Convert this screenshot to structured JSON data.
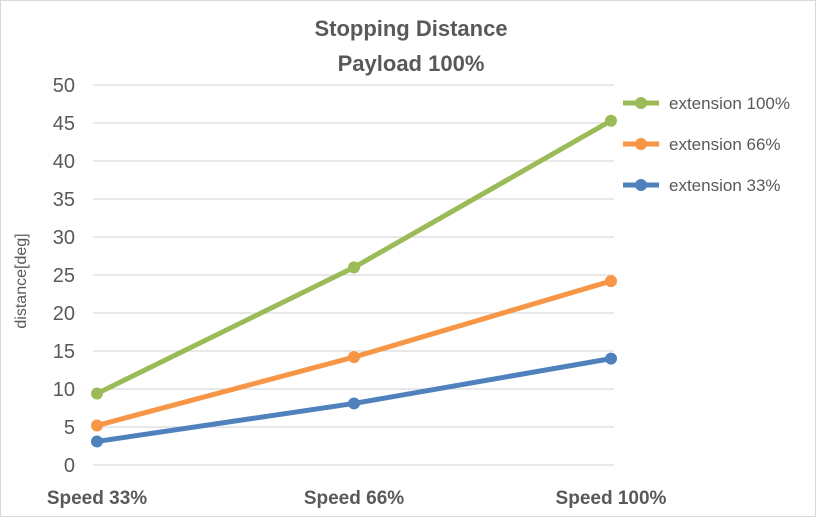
{
  "chart_data": {
    "type": "line",
    "title": [
      "Stopping Distance",
      "Payload 100%"
    ],
    "xlabel": "",
    "ylabel": "distance[deg]",
    "categories": [
      "Speed 33%",
      "Speed 66%",
      "Speed 100%"
    ],
    "ylim": [
      0,
      50
    ],
    "yticks": [
      0,
      5,
      10,
      15,
      20,
      25,
      30,
      35,
      40,
      45,
      50
    ],
    "grid": true,
    "legend_position": "right",
    "series": [
      {
        "name": "extension 100%",
        "color": "#9bbb59",
        "values": [
          9.4,
          26.0,
          45.3
        ]
      },
      {
        "name": "extension 66%",
        "color": "#f79646",
        "values": [
          5.2,
          14.2,
          24.2
        ]
      },
      {
        "name": "extension 33%",
        "color": "#4f81bd",
        "values": [
          3.1,
          8.1,
          14.0
        ]
      }
    ]
  }
}
